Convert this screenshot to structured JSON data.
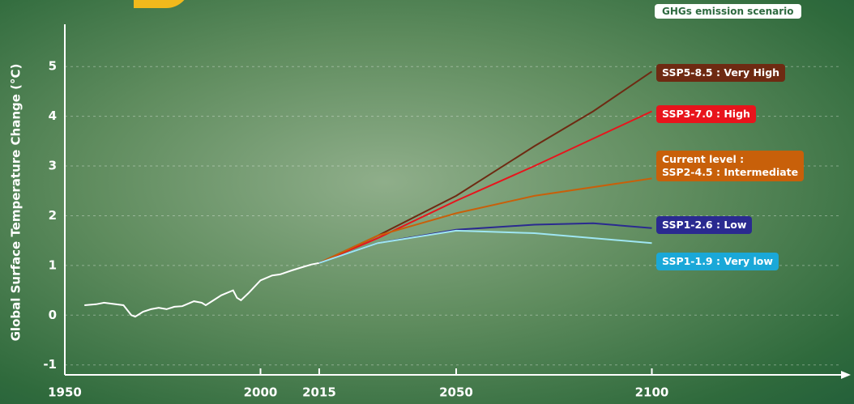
{
  "chart_data": {
    "type": "line",
    "ylabel": "Global Surface Temperature Change (°C)",
    "legend_title": "GHGs emission scenario",
    "xlim": [
      1950,
      2150
    ],
    "ylim": [
      -1.2,
      5.85
    ],
    "xticks": [
      1950,
      2000,
      2015,
      2050,
      2100
    ],
    "yticks": [
      -1,
      0,
      1,
      2,
      3,
      4,
      5
    ],
    "grid": true,
    "series": [
      {
        "color": "#ffffff",
        "x": [
          1955,
          1958,
          1960,
          1963,
          1965,
          1967,
          1968,
          1970,
          1972,
          1974,
          1976,
          1978,
          1980,
          1983,
          1985,
          1986,
          1988,
          1990,
          1993,
          1994,
          1995,
          1997,
          2000,
          2003,
          2005,
          2008,
          2010,
          2013,
          2015
        ],
        "values": [
          0.2,
          0.22,
          0.25,
          0.22,
          0.2,
          0.0,
          -0.03,
          0.07,
          0.12,
          0.15,
          0.12,
          0.17,
          0.18,
          0.28,
          0.25,
          0.2,
          0.3,
          0.4,
          0.5,
          0.35,
          0.3,
          0.45,
          0.7,
          0.8,
          0.82,
          0.9,
          0.95,
          1.02,
          1.05
        ]
      },
      {
        "name": "SSP5-8.5 : Very High",
        "color": "#6e2a12",
        "x": [
          2015,
          2030,
          2050,
          2070,
          2085,
          2100
        ],
        "values": [
          1.05,
          1.6,
          2.4,
          3.4,
          4.1,
          4.9
        ]
      },
      {
        "name": "SSP3-7.0 : High",
        "color": "#e8141c",
        "x": [
          2015,
          2030,
          2050,
          2070,
          2100
        ],
        "values": [
          1.05,
          1.55,
          2.3,
          3.0,
          4.1
        ]
      },
      {
        "name": "Current level :\nSSP2-4.5 : Intermediate",
        "color": "#c8600a",
        "x": [
          2015,
          2030,
          2050,
          2070,
          2100
        ],
        "values": [
          1.05,
          1.6,
          2.05,
          2.4,
          2.75
        ]
      },
      {
        "name": "SSP1-2.6 : Low",
        "color": "#2a2a90",
        "x": [
          2015,
          2030,
          2050,
          2070,
          2085,
          2100
        ],
        "values": [
          1.05,
          1.45,
          1.72,
          1.82,
          1.85,
          1.75
        ]
      },
      {
        "name": "SSP1-1.9 : Very low",
        "color": "#1aa8d8",
        "x": [
          2015,
          2030,
          2050,
          2070,
          2100
        ],
        "values": [
          1.05,
          1.45,
          1.7,
          1.65,
          1.45
        ]
      }
    ]
  }
}
